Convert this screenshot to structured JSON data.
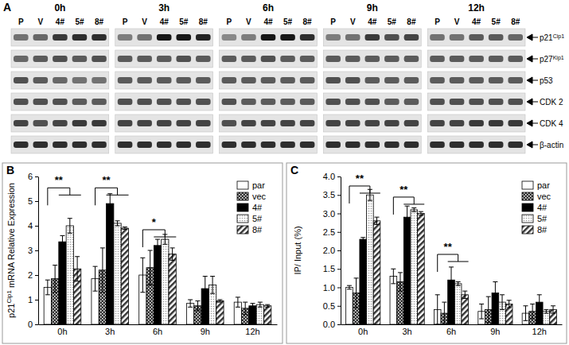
{
  "blot": {
    "panel_label": "A",
    "times": [
      "0h",
      "3h",
      "6h",
      "9h",
      "12h"
    ],
    "lanes": [
      "P",
      "V",
      "4#",
      "5#",
      "8#"
    ],
    "proteins": [
      {
        "name": "p21",
        "sup": "Cip1",
        "intensity": [
          0.5,
          0.55,
          0.75,
          0.8,
          0.8,
          0.45,
          0.5,
          0.9,
          0.9,
          0.85,
          0.4,
          0.45,
          0.9,
          0.9,
          0.8,
          0.45,
          0.5,
          0.75,
          0.65,
          0.7,
          0.5,
          0.5,
          0.6,
          0.6,
          0.55
        ]
      },
      {
        "name": "p27",
        "sup": "Kip1",
        "intensity": [
          0.55,
          0.6,
          0.65,
          0.6,
          0.65,
          0.6,
          0.6,
          0.6,
          0.65,
          0.6,
          0.6,
          0.6,
          0.65,
          0.6,
          0.6,
          0.6,
          0.6,
          0.6,
          0.6,
          0.6,
          0.6,
          0.6,
          0.6,
          0.6,
          0.6
        ]
      },
      {
        "name": "p53",
        "intensity": [
          0.65,
          0.6,
          0.55,
          0.5,
          0.5,
          0.6,
          0.6,
          0.6,
          0.6,
          0.6,
          0.6,
          0.6,
          0.6,
          0.6,
          0.6,
          0.65,
          0.65,
          0.6,
          0.6,
          0.6,
          0.6,
          0.6,
          0.6,
          0.6,
          0.6
        ]
      },
      {
        "name": "CDK 2",
        "intensity": [
          0.65,
          0.65,
          0.65,
          0.6,
          0.6,
          0.65,
          0.65,
          0.65,
          0.65,
          0.65,
          0.65,
          0.6,
          0.6,
          0.6,
          0.6,
          0.65,
          0.65,
          0.65,
          0.6,
          0.6,
          0.65,
          0.65,
          0.65,
          0.65,
          0.65
        ]
      },
      {
        "name": "CDK 4",
        "intensity": [
          0.7,
          0.65,
          0.7,
          0.75,
          0.75,
          0.7,
          0.7,
          0.7,
          0.7,
          0.7,
          0.65,
          0.7,
          0.7,
          0.7,
          0.7,
          0.7,
          0.7,
          0.7,
          0.7,
          0.7,
          0.7,
          0.7,
          0.75,
          0.75,
          0.75
        ]
      },
      {
        "name": "β-actin",
        "intensity": [
          0.8,
          0.8,
          0.8,
          0.8,
          0.8,
          0.8,
          0.8,
          0.8,
          0.8,
          0.8,
          0.8,
          0.8,
          0.8,
          0.8,
          0.8,
          0.8,
          0.8,
          0.8,
          0.8,
          0.8,
          0.8,
          0.8,
          0.8,
          0.8,
          0.8
        ]
      }
    ]
  },
  "chart_data": [
    {
      "type": "bar",
      "panel_label": "B",
      "y_label": [
        {
          "text": "p21"
        },
        {
          "text": "Cip1",
          "sup": true
        },
        {
          "text": " mRNA Relative Expression"
        }
      ],
      "categories": [
        "0h",
        "3h",
        "6h",
        "9h",
        "12h"
      ],
      "series": [
        {
          "name": "par",
          "color": "#ffffff",
          "values": [
            1.5,
            1.85,
            2.0,
            0.85,
            0.9
          ],
          "errors": [
            0.3,
            0.5,
            0.7,
            0.15,
            0.2
          ]
        },
        {
          "name": "vec",
          "color": "#333333",
          "values": [
            1.85,
            2.2,
            2.3,
            0.75,
            0.65
          ],
          "errors": [
            0.55,
            0.9,
            0.7,
            0.2,
            0.25
          ]
        },
        {
          "name": "4#",
          "color": "#000000",
          "values": [
            3.35,
            4.9,
            3.2,
            1.45,
            0.75
          ],
          "errors": [
            0.25,
            0.4,
            0.25,
            0.5,
            0.1
          ]
        },
        {
          "name": "5#",
          "color": "#999999",
          "values": [
            4.0,
            4.1,
            3.45,
            1.6,
            0.8
          ],
          "errors": [
            0.3,
            0.1,
            0.2,
            0.35,
            0.1
          ]
        },
        {
          "name": "8#",
          "color": "#333333",
          "values": [
            2.25,
            3.9,
            2.85,
            0.95,
            0.75
          ],
          "errors": [
            0.5,
            0.05,
            0.25,
            0.05,
            0.05
          ]
        }
      ],
      "ylim": [
        0,
        6
      ],
      "yticks": [
        0,
        1,
        2,
        3,
        4,
        5,
        6
      ],
      "legend": "top-right",
      "annotations": [
        {
          "text": "**",
          "x": "0h",
          "y": 5.7
        },
        {
          "text": "**",
          "x": "3h",
          "y": 5.7
        },
        {
          "text": "*",
          "x": "6h",
          "y": 4.0
        }
      ]
    },
    {
      "type": "bar",
      "panel_label": "C",
      "y_label": [
        {
          "text": "IP/ Input (%)"
        }
      ],
      "categories": [
        "0h",
        "3h",
        "6h",
        "9h",
        "12h"
      ],
      "series": [
        {
          "name": "par",
          "color": "#ffffff",
          "values": [
            1.0,
            1.3,
            0.4,
            0.35,
            0.3
          ],
          "errors": [
            0.05,
            0.2,
            0.4,
            0.2,
            0.2
          ]
        },
        {
          "name": "vec",
          "color": "#333333",
          "values": [
            0.85,
            1.15,
            0.3,
            0.4,
            0.35
          ],
          "errors": [
            0.4,
            0.25,
            0.3,
            0.35,
            0.2
          ]
        },
        {
          "name": "4#",
          "color": "#000000",
          "values": [
            2.3,
            2.9,
            1.2,
            0.85,
            0.6
          ],
          "errors": [
            0.05,
            0.3,
            0.35,
            0.3,
            0.2
          ]
        },
        {
          "name": "5#",
          "color": "#999999",
          "values": [
            3.5,
            3.1,
            1.1,
            0.6,
            0.35
          ],
          "errors": [
            0.15,
            0.05,
            0.05,
            0.2,
            0.05
          ]
        },
        {
          "name": "8#",
          "color": "#333333",
          "values": [
            2.8,
            3.0,
            0.8,
            0.55,
            0.4
          ],
          "errors": [
            0.1,
            0.05,
            0.1,
            0.1,
            0.1
          ]
        }
      ],
      "ylim": [
        0,
        4
      ],
      "yticks": [
        {
          "value": 0,
          "label": "0.0"
        },
        0.5,
        {
          "value": 1,
          "label": "1.0"
        },
        1.5,
        {
          "value": 2,
          "label": "2.0"
        },
        2.5,
        {
          "value": 3,
          "label": "3.0"
        },
        3.5,
        {
          "value": 4,
          "label": "4.0"
        }
      ],
      "legend": "top-right",
      "annotations": [
        {
          "text": "**",
          "x": "0h",
          "y": 3.85
        },
        {
          "text": "**",
          "x": "3h",
          "y": 3.55
        },
        {
          "text": "**",
          "x": "6h",
          "y": 2.0
        }
      ]
    }
  ]
}
